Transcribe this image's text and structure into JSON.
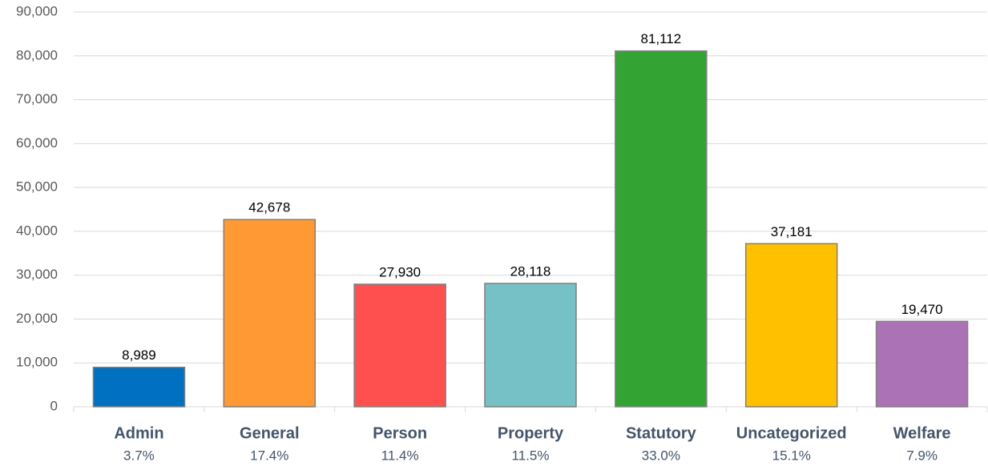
{
  "chart_data": {
    "type": "bar",
    "categories": [
      "Admin",
      "General",
      "Person",
      "Property",
      "Statutory",
      "Uncategorized",
      "Welfare"
    ],
    "category_shares": [
      "3.7%",
      "17.4%",
      "11.4%",
      "11.5%",
      "33.0%",
      "15.1%",
      "7.9%"
    ],
    "values": [
      8989,
      42678,
      27930,
      28118,
      81112,
      37181,
      19470
    ],
    "value_labels": [
      "8,989",
      "42,678",
      "27,930",
      "28,118",
      "81,112",
      "37,181",
      "19,470"
    ],
    "colors": [
      "#0070c0",
      "#ff9933",
      "#ff5050",
      "#75c1c6",
      "#33a333",
      "#ffc000",
      "#ab73b6"
    ],
    "ylim": [
      0,
      90000
    ],
    "yticks": [
      0,
      {
        "value": 10000,
        "label": "10,000"
      },
      {
        "value": 20000,
        "label": "20,000"
      },
      {
        "value": 30000,
        "label": "30,000"
      },
      {
        "value": 40000,
        "label": "40,000"
      },
      {
        "value": 50000,
        "label": "50,000"
      },
      {
        "value": 60000,
        "label": "60,000"
      },
      {
        "value": 70000,
        "label": "70,000"
      },
      {
        "value": 80000,
        "label": "80,000"
      },
      {
        "value": 90000,
        "label": "90,000"
      }
    ],
    "grid": true
  }
}
